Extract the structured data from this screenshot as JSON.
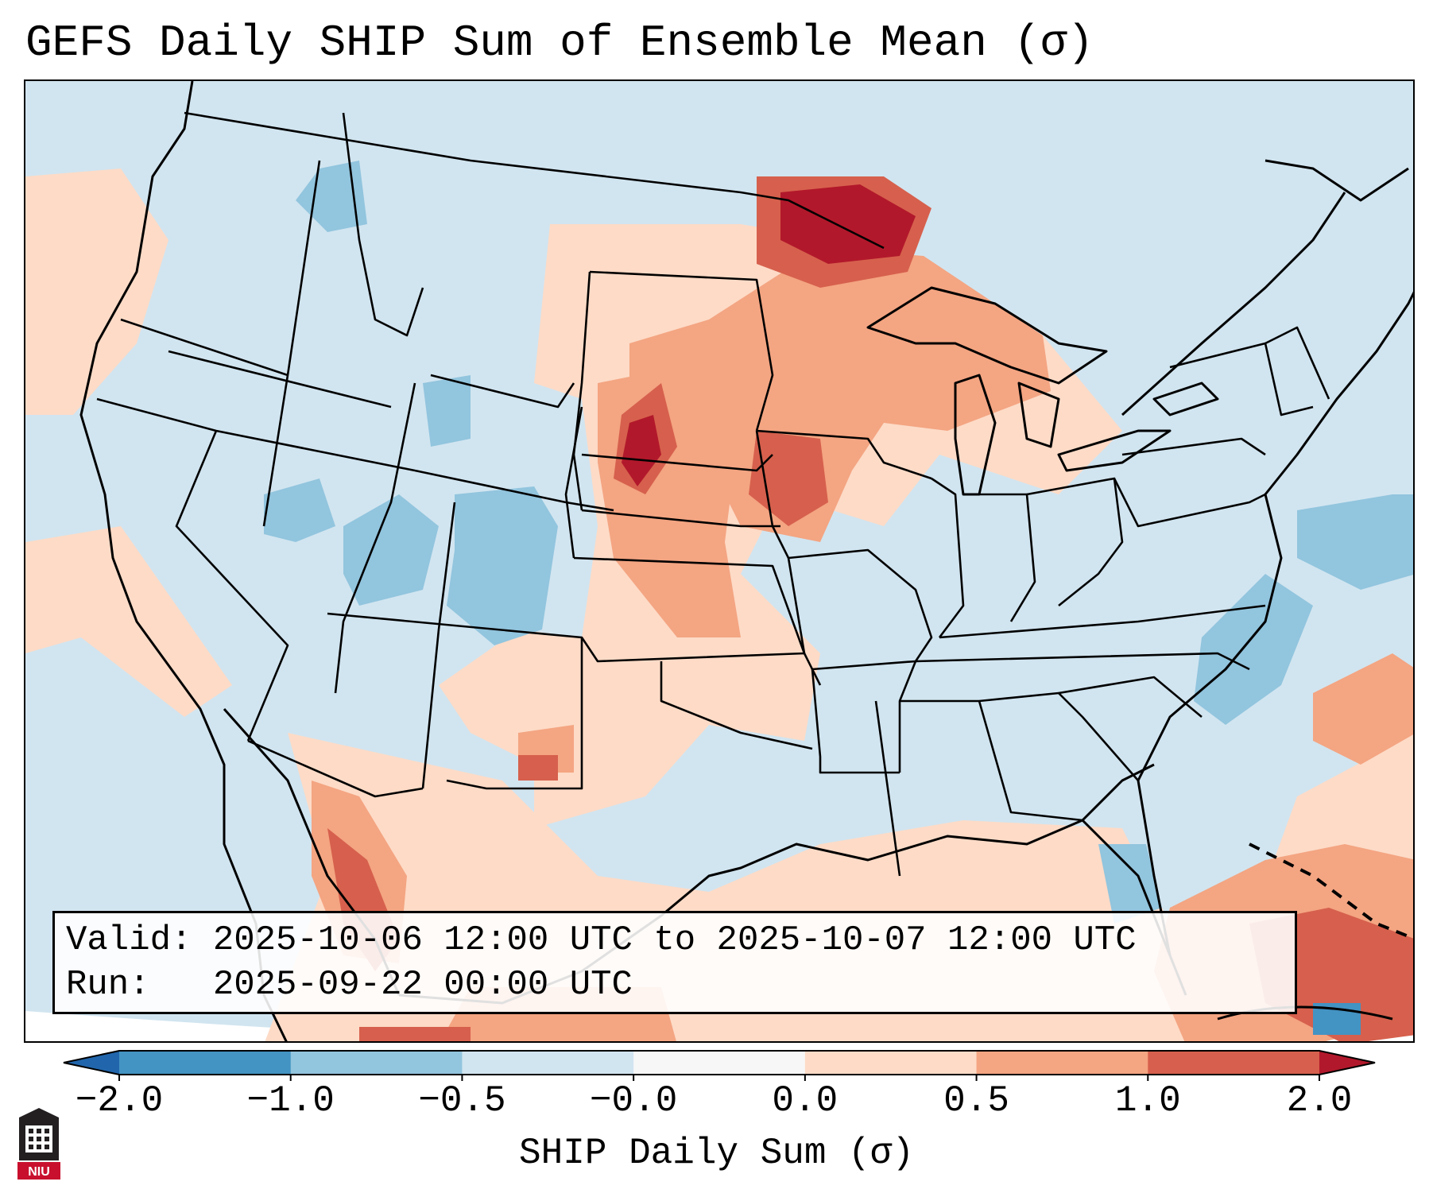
{
  "title": "GEFS Daily SHIP Sum of Ensemble Mean (σ)",
  "info": {
    "valid_label": "Valid:",
    "valid_value": "2025-10-06 12:00 UTC to 2025-10-07 12:00 UTC",
    "run_label": "Run:",
    "run_value": "2025-09-22 00:00 UTC"
  },
  "colorbar": {
    "label": "SHIP Daily Sum (σ)",
    "ticks": [
      "−2.0",
      "−1.0",
      "−0.5",
      "−0.0",
      "0.0",
      "0.5",
      "1.0",
      "2.0"
    ],
    "colors": [
      "#4393c3",
      "#92c5de",
      "#d1e5f0",
      "#f7f7f7",
      "#fddbc7",
      "#f4a582",
      "#d6604d"
    ],
    "extend_low_color": "#2166ac",
    "extend_high_color": "#b2182b"
  },
  "map": {
    "background_color": "#d1e5f0",
    "region_labels": []
  },
  "logo": {
    "text": "NIU",
    "color": "#c8102e"
  }
}
